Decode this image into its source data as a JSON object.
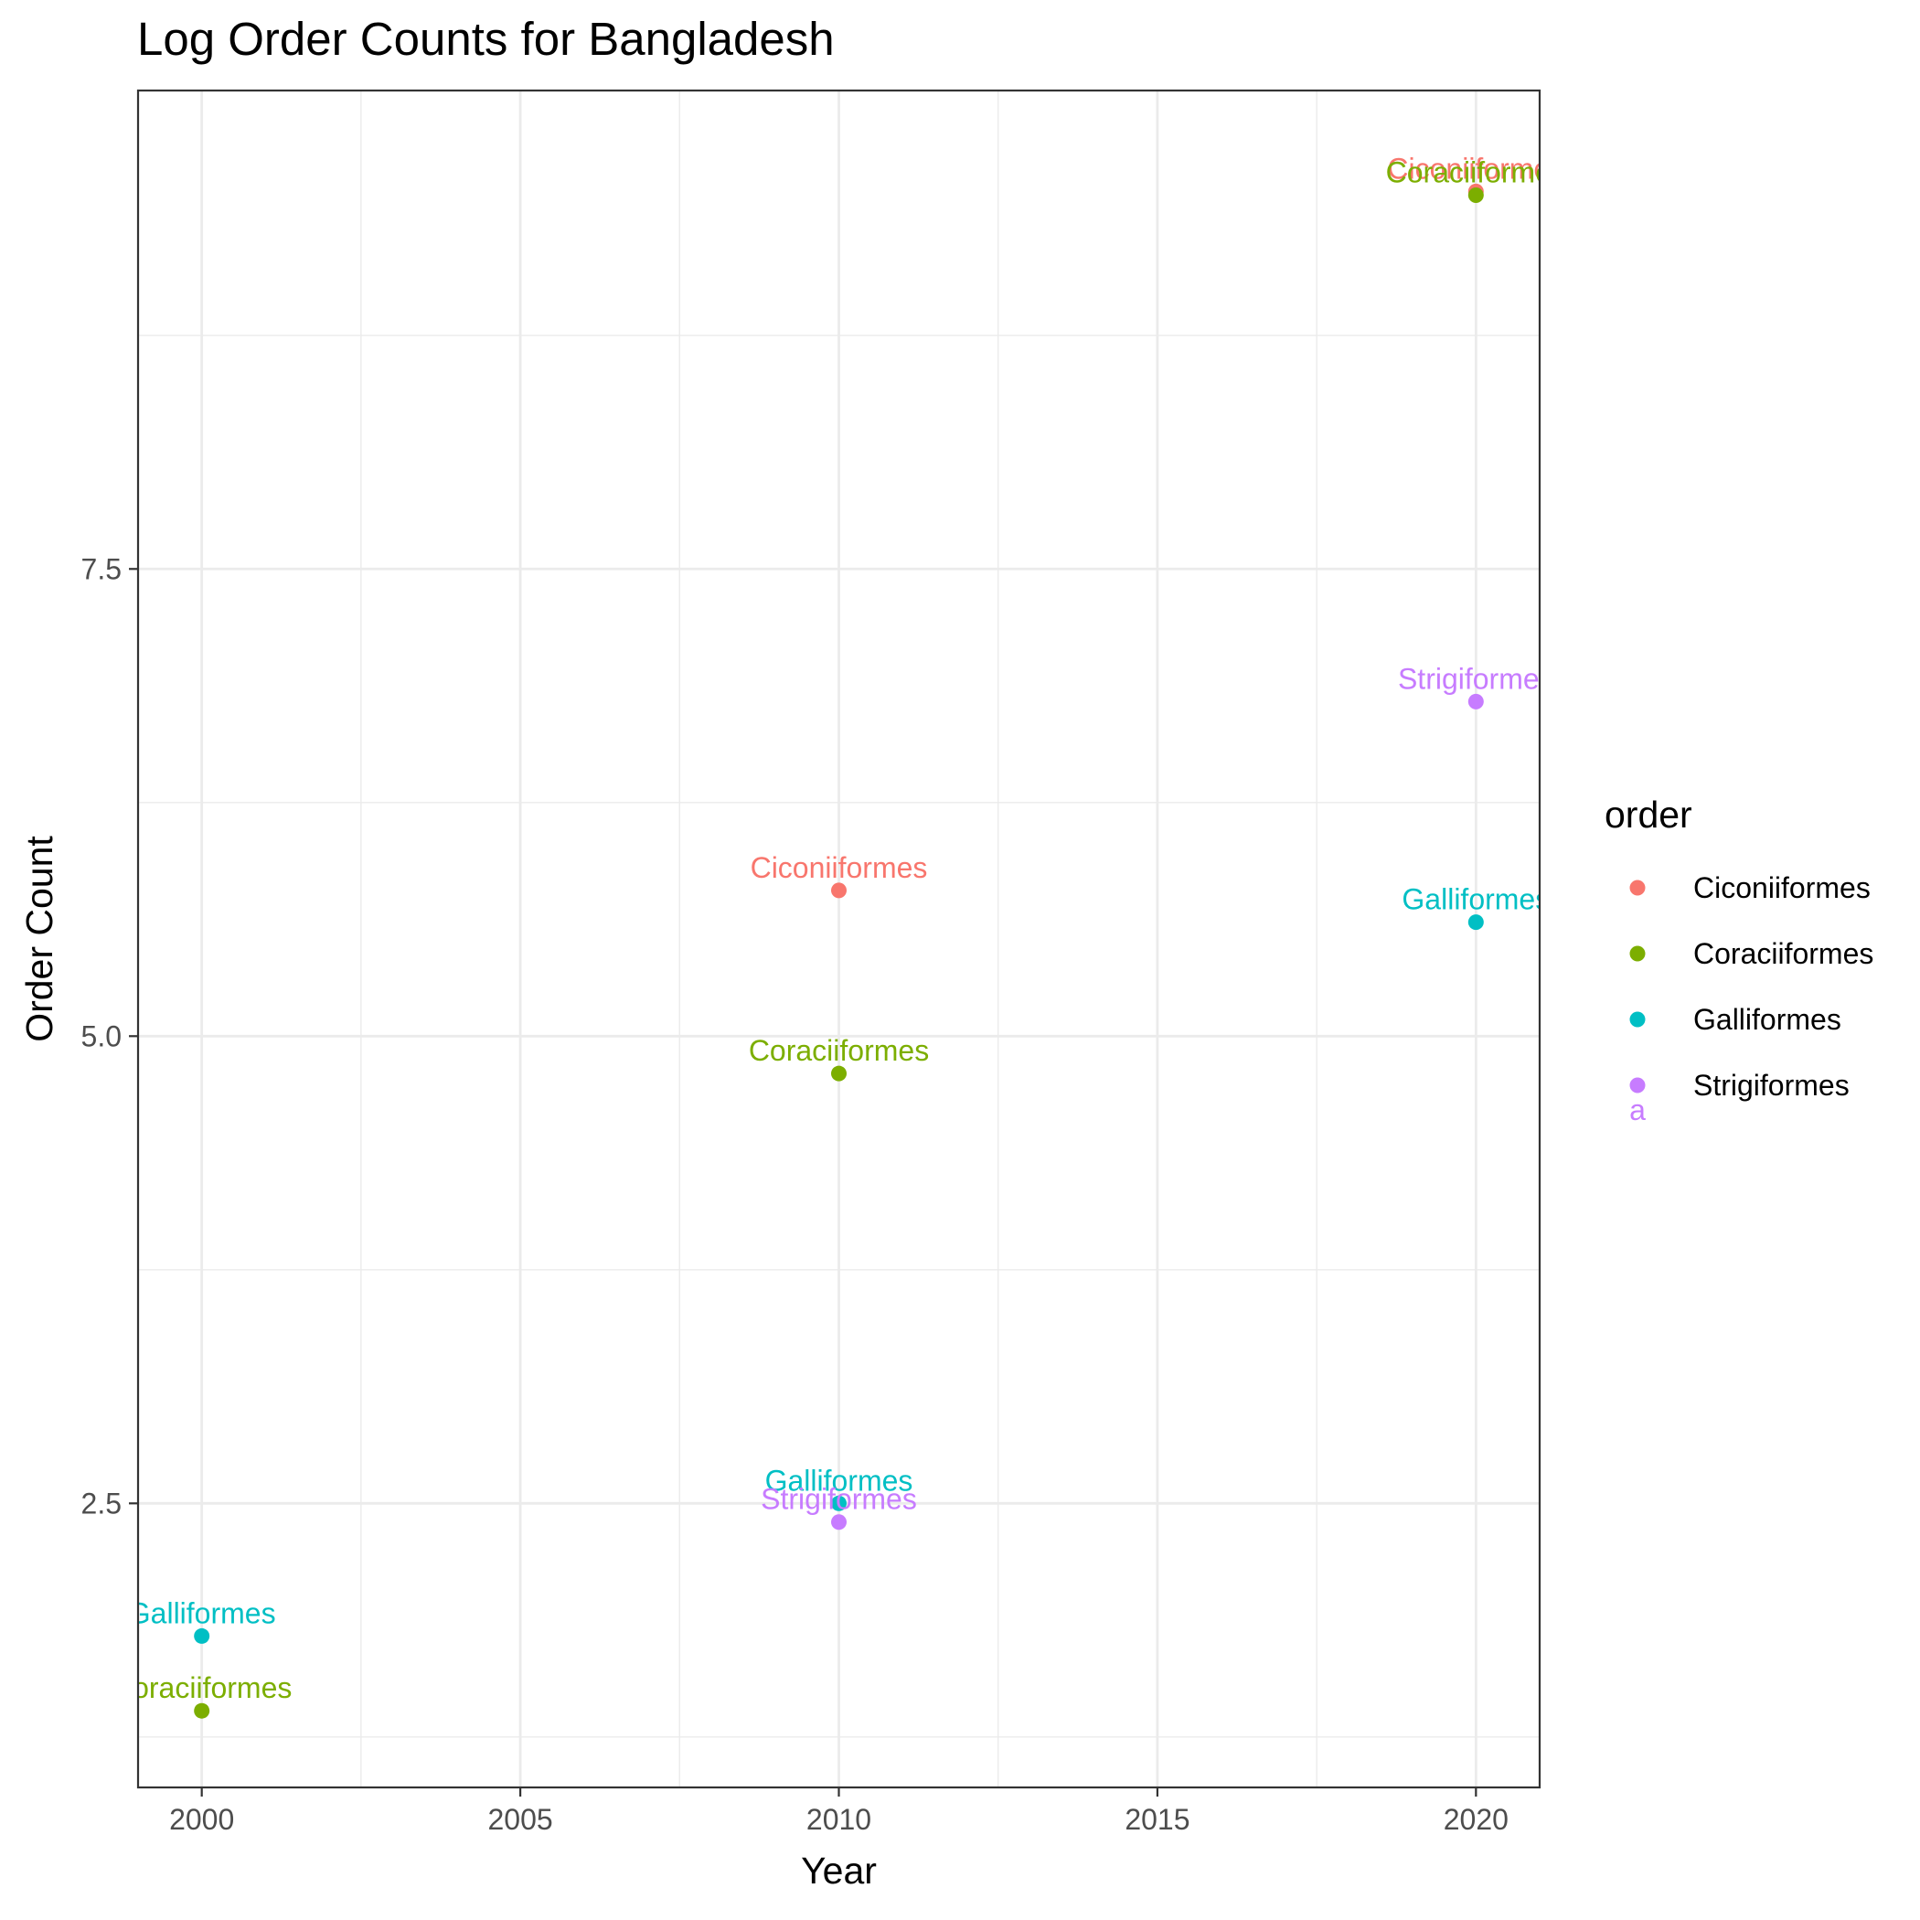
{
  "chart_data": {
    "type": "scatter",
    "title": "Log Order Counts for Bangladesh",
    "xlabel": "Year",
    "ylabel": "Order Count",
    "xlim": [
      1999,
      2021
    ],
    "ylim": [
      0.98,
      10.06
    ],
    "x_ticks": [
      "2000",
      "2005",
      "2010",
      "2015",
      "2020"
    ],
    "x_tick_values": [
      2000,
      2005,
      2010,
      2015,
      2020
    ],
    "y_ticks": [
      "2.5",
      "5.0",
      "7.5"
    ],
    "y_tick_values": [
      2.5,
      5.0,
      7.5
    ],
    "x_minor": [
      2002.5,
      2007.5,
      2012.5,
      2017.5
    ],
    "y_minor": [
      1.25,
      3.75,
      6.25,
      8.75
    ],
    "grid": true,
    "legend_position": "right",
    "legend_title": "order",
    "legend_key_glyph": "a",
    "series": [
      {
        "name": "Ciconiiformes",
        "color": "#F8766D",
        "x": [
          2010,
          2020
        ],
        "y": [
          5.78,
          9.52
        ]
      },
      {
        "name": "Coraciiformes",
        "color": "#7CAE00",
        "x": [
          2000,
          2010,
          2020
        ],
        "y": [
          1.39,
          4.8,
          9.5
        ]
      },
      {
        "name": "Galliformes",
        "color": "#00BFC4",
        "x": [
          2000,
          2010,
          2020
        ],
        "y": [
          1.79,
          2.5,
          5.61
        ]
      },
      {
        "name": "Strigiformes",
        "color": "#C77CFF",
        "x": [
          2010,
          2020
        ],
        "y": [
          2.4,
          6.79
        ]
      }
    ]
  }
}
